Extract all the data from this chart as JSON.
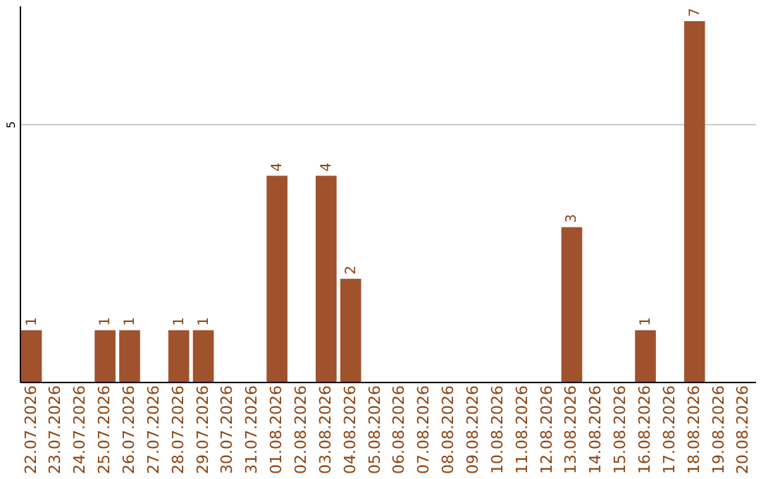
{
  "chart_data": {
    "type": "bar",
    "categories": [
      "22.07.2026",
      "23.07.2026",
      "24.07.2026",
      "25.07.2026",
      "26.07.2026",
      "27.07.2026",
      "28.07.2026",
      "29.07.2026",
      "30.07.2026",
      "31.07.2026",
      "01.08.2026",
      "02.08.2026",
      "03.08.2026",
      "04.08.2026",
      "05.08.2026",
      "06.08.2026",
      "07.08.2026",
      "08.08.2026",
      "09.08.2026",
      "10.08.2026",
      "11.08.2026",
      "12.08.2026",
      "13.08.2026",
      "14.08.2026",
      "15.08.2026",
      "16.08.2026",
      "17.08.2026",
      "18.08.2026",
      "19.08.2026",
      "20.08.2026"
    ],
    "values": [
      1,
      null,
      null,
      1,
      1,
      null,
      1,
      1,
      null,
      null,
      4,
      null,
      4,
      2,
      null,
      null,
      null,
      null,
      null,
      null,
      null,
      null,
      3,
      null,
      null,
      1,
      null,
      7,
      null,
      null
    ],
    "color": "#a0522d",
    "ylim": [
      0,
      7.3
    ],
    "yticks": [
      5
    ],
    "grid": "y",
    "data_labels": true
  }
}
